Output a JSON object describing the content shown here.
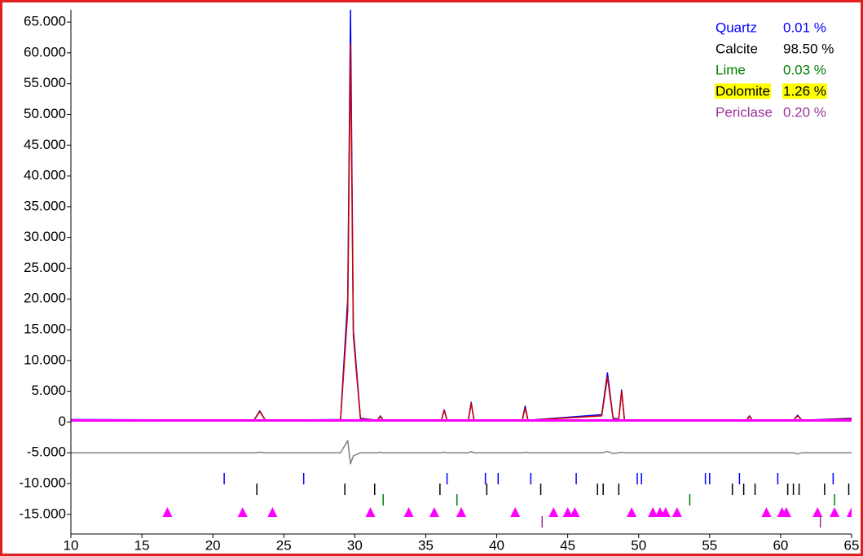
{
  "chart_data": {
    "type": "line",
    "xlim": [
      10,
      65
    ],
    "ylim": [
      -18200,
      67000
    ],
    "xticks": [
      10,
      15,
      20,
      25,
      30,
      35,
      40,
      45,
      50,
      55,
      60,
      65
    ],
    "yticks": [
      {
        "value": 65000,
        "label": "65.000"
      },
      {
        "value": 60000,
        "label": "60.000"
      },
      {
        "value": 55000,
        "label": "55.000"
      },
      {
        "value": 50000,
        "label": "50.000"
      },
      {
        "value": 45000,
        "label": "45.000"
      },
      {
        "value": 40000,
        "label": "40.000"
      },
      {
        "value": 35000,
        "label": "35.000"
      },
      {
        "value": 30000,
        "label": "30.000"
      },
      {
        "value": 25000,
        "label": "25.000"
      },
      {
        "value": 20000,
        "label": "20.000"
      },
      {
        "value": 15000,
        "label": "15.000"
      },
      {
        "value": 10000,
        "label": "10.000"
      },
      {
        "value": 5000,
        "label": "5.000"
      },
      0,
      {
        "value": -5000,
        "label": "-5.000"
      },
      {
        "value": -10000,
        "label": "-10.000"
      },
      {
        "value": -15000,
        "label": "-15.000"
      }
    ],
    "x": [
      10,
      22.9,
      23.3,
      23.7,
      29.0,
      29.5,
      29.7,
      29.9,
      30.4,
      31.6,
      31.8,
      32.0,
      36.1,
      36.3,
      36.5,
      38.0,
      38.2,
      38.4,
      41.8,
      42.0,
      42.2,
      47.4,
      47.8,
      48.2,
      48.6,
      48.8,
      49.0,
      57.6,
      57.8,
      58.0,
      60.9,
      61.2,
      61.5,
      65
    ],
    "series": [
      {
        "color": "#0000ff",
        "width": 1.5,
        "values": [
          400,
          300,
          1800,
          300,
          400,
          20000,
          67000,
          15000,
          600,
          300,
          1000,
          300,
          300,
          2000,
          300,
          300,
          3200,
          300,
          300,
          2600,
          300,
          1200,
          8000,
          600,
          500,
          5200,
          300,
          300,
          1000,
          300,
          300,
          1100,
          300,
          600
        ]
      },
      {
        "color": "#cc0000",
        "width": 1.5,
        "values": [
          300,
          300,
          1700,
          300,
          350,
          18000,
          61500,
          14000,
          500,
          300,
          900,
          300,
          300,
          1900,
          300,
          300,
          3000,
          300,
          300,
          2300,
          300,
          1000,
          7300,
          500,
          400,
          5000,
          300,
          300,
          900,
          300,
          300,
          1000,
          300,
          500
        ]
      },
      {
        "color": "#ff00ff",
        "width": 3,
        "values": [
          250,
          250,
          250,
          250,
          250,
          250,
          250,
          250,
          250,
          250,
          250,
          250,
          250,
          250,
          250,
          250,
          250,
          250,
          250,
          250,
          250,
          250,
          250,
          250,
          250,
          250,
          250,
          250,
          250,
          250,
          250,
          250,
          250,
          250
        ]
      },
      {
        "color": "#808080",
        "width": 1.5,
        "values": [
          -5000,
          -5000,
          -4900,
          -5000,
          -5000,
          -3000,
          -6800,
          -5500,
          -5000,
          -5000,
          -4900,
          -5000,
          -5000,
          -4900,
          -5000,
          -5000,
          -4800,
          -5000,
          -5000,
          -4900,
          -5000,
          -5000,
          -4800,
          -5100,
          -5000,
          -4900,
          -5000,
          -5000,
          -5000,
          -5000,
          -5000,
          -5200,
          -5000,
          -5000
        ]
      }
    ],
    "legend": [
      {
        "name": "Quartz",
        "amount": "0.01 %",
        "color": "#0000ff",
        "peaks": [
          20.8,
          26.4,
          36.5,
          39.2,
          40.1,
          42.4,
          45.6,
          49.9,
          50.2,
          54.7,
          55.0,
          57.1,
          59.8,
          63.7
        ]
      },
      {
        "name": "Calcite",
        "amount": "98.50 %",
        "color": "#000000",
        "peaks": [
          23.1,
          29.3,
          31.4,
          36.0,
          39.3,
          43.1,
          47.1,
          47.5,
          48.6,
          56.6,
          57.4,
          58.2,
          60.5,
          60.9,
          61.3,
          63.1,
          64.8
        ]
      },
      {
        "name": "Lime",
        "amount": "0.03 %",
        "color": "#008000",
        "peaks": [
          32.0,
          37.2,
          53.6,
          63.8
        ]
      },
      {
        "name": "Dolomite",
        "amount": "1.26 %",
        "color": "#000000",
        "highlight": "#ffff00",
        "marker_color": "#ff00ff",
        "peaks": [
          16.8,
          22.1,
          24.2,
          31.1,
          33.8,
          35.6,
          37.5,
          41.3,
          44.0,
          45.0,
          45.5,
          49.5,
          51.0,
          51.5,
          51.9,
          52.7,
          59.0,
          60.1,
          60.4,
          62.6,
          63.8,
          65.0
        ]
      },
      {
        "name": "Periclase",
        "amount": "0.20 %",
        "color": "#993399",
        "peaks": [
          43.2,
          62.8
        ]
      }
    ]
  }
}
